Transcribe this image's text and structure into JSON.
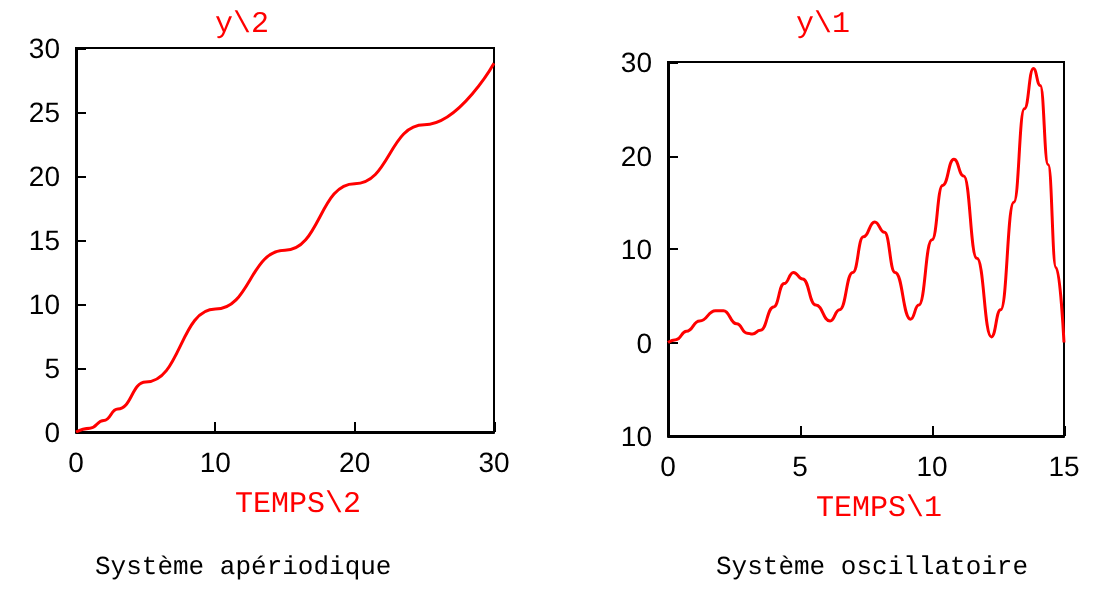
{
  "chart_data": [
    {
      "type": "line",
      "title": "Système apériodique",
      "xlabel": "TEMPS\\2",
      "ylabel": "y\\2",
      "grid": false,
      "marker": "none",
      "line_style": "solid",
      "xlim": [
        0,
        30
      ],
      "xticks": [
        0,
        10,
        20,
        30
      ],
      "ylim": [
        0,
        30
      ],
      "yticks": [
        0,
        5,
        10,
        15,
        20,
        25,
        30
      ],
      "series": [
        {
          "color": "#ff0000",
          "x": [
            0,
            1,
            2,
            3,
            5,
            10,
            15,
            20,
            25,
            30
          ],
          "values": [
            0,
            0.3,
            0.9,
            1.8,
            3.9,
            9.6,
            14.2,
            19.4,
            24.0,
            28.8
          ]
        }
      ]
    },
    {
      "type": "line",
      "title": "Système oscillatoire",
      "xlabel": "TEMPS\\1",
      "ylabel": "y\\1",
      "grid": false,
      "marker": "none",
      "line_style": "solid",
      "xlim": [
        0,
        15
      ],
      "xticks": [
        0,
        5,
        10,
        15
      ],
      "ylim": [
        -10,
        30
      ],
      "yticks": [
        {
          "value": -10,
          "label": "10"
        },
        0,
        10,
        20,
        30
      ],
      "series": [
        {
          "color": "#ff0000",
          "x": [
            0,
            0.3,
            0.7,
            1.2,
            1.8,
            2.1,
            2.6,
            3.0,
            3.2,
            3.5,
            4.0,
            4.4,
            4.75,
            5.1,
            5.6,
            6.14,
            6.5,
            7.0,
            7.4,
            7.83,
            8.2,
            8.6,
            9.19,
            9.5,
            10.0,
            10.4,
            10.83,
            11.2,
            11.7,
            12.25,
            12.6,
            13.1,
            13.5,
            13.84,
            14.1,
            14.4,
            14.7,
            15.0
          ],
          "values": [
            0,
            0.3,
            1.2,
            2.3,
            3.4,
            3.4,
            2.0,
            1.0,
            0.9,
            1.3,
            3.8,
            6.3,
            7.5,
            6.8,
            4.0,
            2.3,
            3.5,
            7.5,
            11.3,
            12.9,
            11.8,
            7.5,
            2.5,
            4.0,
            11.0,
            16.8,
            19.6,
            17.8,
            9.0,
            0.6,
            3.5,
            15.0,
            25.0,
            29.3,
            27.5,
            19.0,
            8.0,
            0.0
          ]
        }
      ]
    }
  ]
}
